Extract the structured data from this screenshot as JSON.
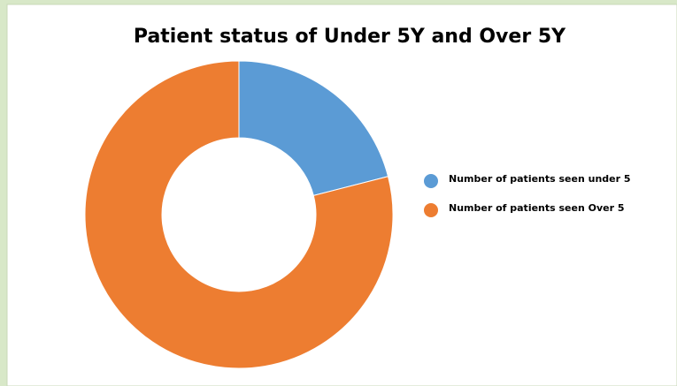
{
  "chart_data": {
    "type": "donut",
    "title": "Patient status of Under 5Y and Over 5Y",
    "categories": [
      "Number of patients seen under 5",
      "Number of patients seen Over 5"
    ],
    "values": [
      21,
      79
    ],
    "colors": [
      "#5b9bd5",
      "#ed7d31"
    ],
    "legend": "right"
  }
}
